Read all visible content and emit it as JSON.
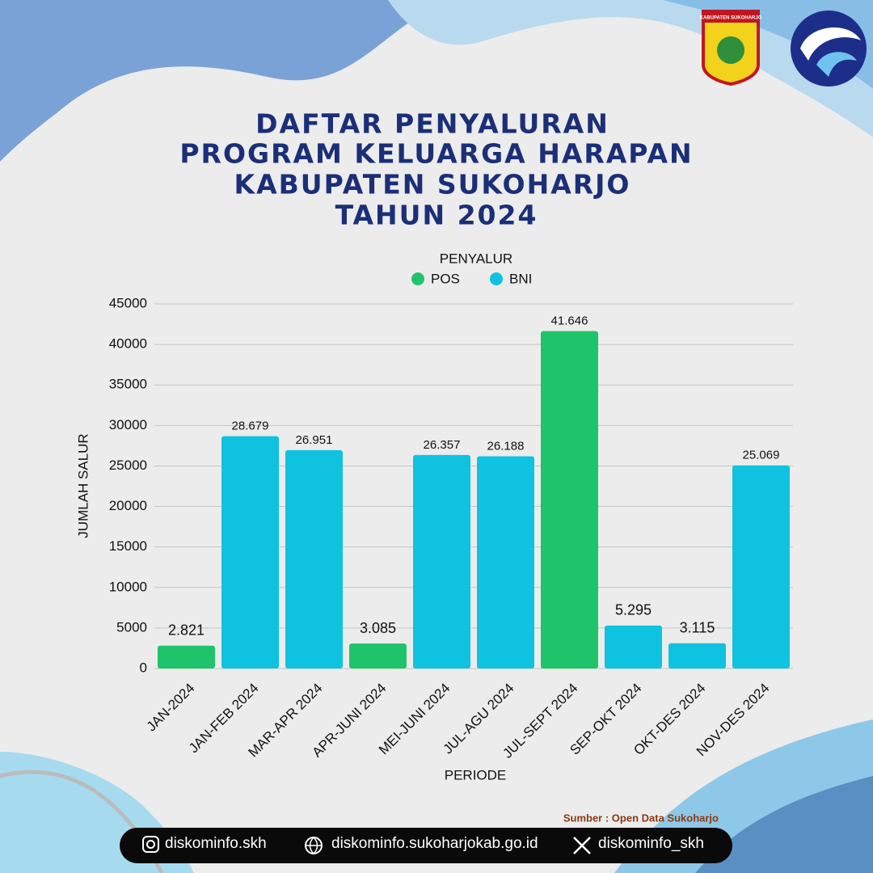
{
  "logo_text": "KABUPATEN SUKOHARJO",
  "chart_data": {
    "type": "bar",
    "title_lines": [
      "DAFTAR PENYALURAN",
      "PROGRAM KELUARGA HARAPAN",
      "KABUPATEN SUKOHARJO",
      "TAHUN 2024"
    ],
    "legend_title": "PENYALUR",
    "y_label": "JUMLAH SALUR",
    "x_label": "PERIODE",
    "categories": [
      "JAN-2024",
      "JAN-FEB 2024",
      "MAR-APR 2024",
      "APR-JUNI 2024",
      "MEI-JUNI 2024",
      "JUL-AGU 2024",
      "JUL-SEPT 2024",
      "SEP-OKT 2024",
      "OKT-DES 2024",
      "NOV-DES 2024"
    ],
    "series": [
      {
        "name": "POS",
        "color": "#1fc46a",
        "values": [
          2821,
          null,
          null,
          3085,
          null,
          null,
          41646,
          null,
          null,
          null
        ],
        "value_labels": [
          "2.821",
          null,
          null,
          "3.085",
          null,
          null,
          "41.646",
          null,
          null,
          null
        ]
      },
      {
        "name": "BNI",
        "color": "#0fc2e0",
        "values": [
          null,
          28679,
          26951,
          null,
          26357,
          26188,
          null,
          5295,
          3115,
          25069
        ],
        "value_labels": [
          null,
          "28.679",
          "26.951",
          null,
          "26.357",
          "26.188",
          null,
          "5.295",
          "3.115",
          "25.069"
        ]
      }
    ],
    "ylim": [
      0,
      45000
    ],
    "yticks": [
      0,
      5000,
      10000,
      15000,
      20000,
      25000,
      30000,
      35000,
      40000,
      45000
    ],
    "grid": true
  },
  "source": "Sumber : Open Data Sukoharjo",
  "footer": {
    "instagram": "diskominfo.skh",
    "website": "diskominfo.sukoharjokab.go.id",
    "x": "diskominfo_skh"
  }
}
